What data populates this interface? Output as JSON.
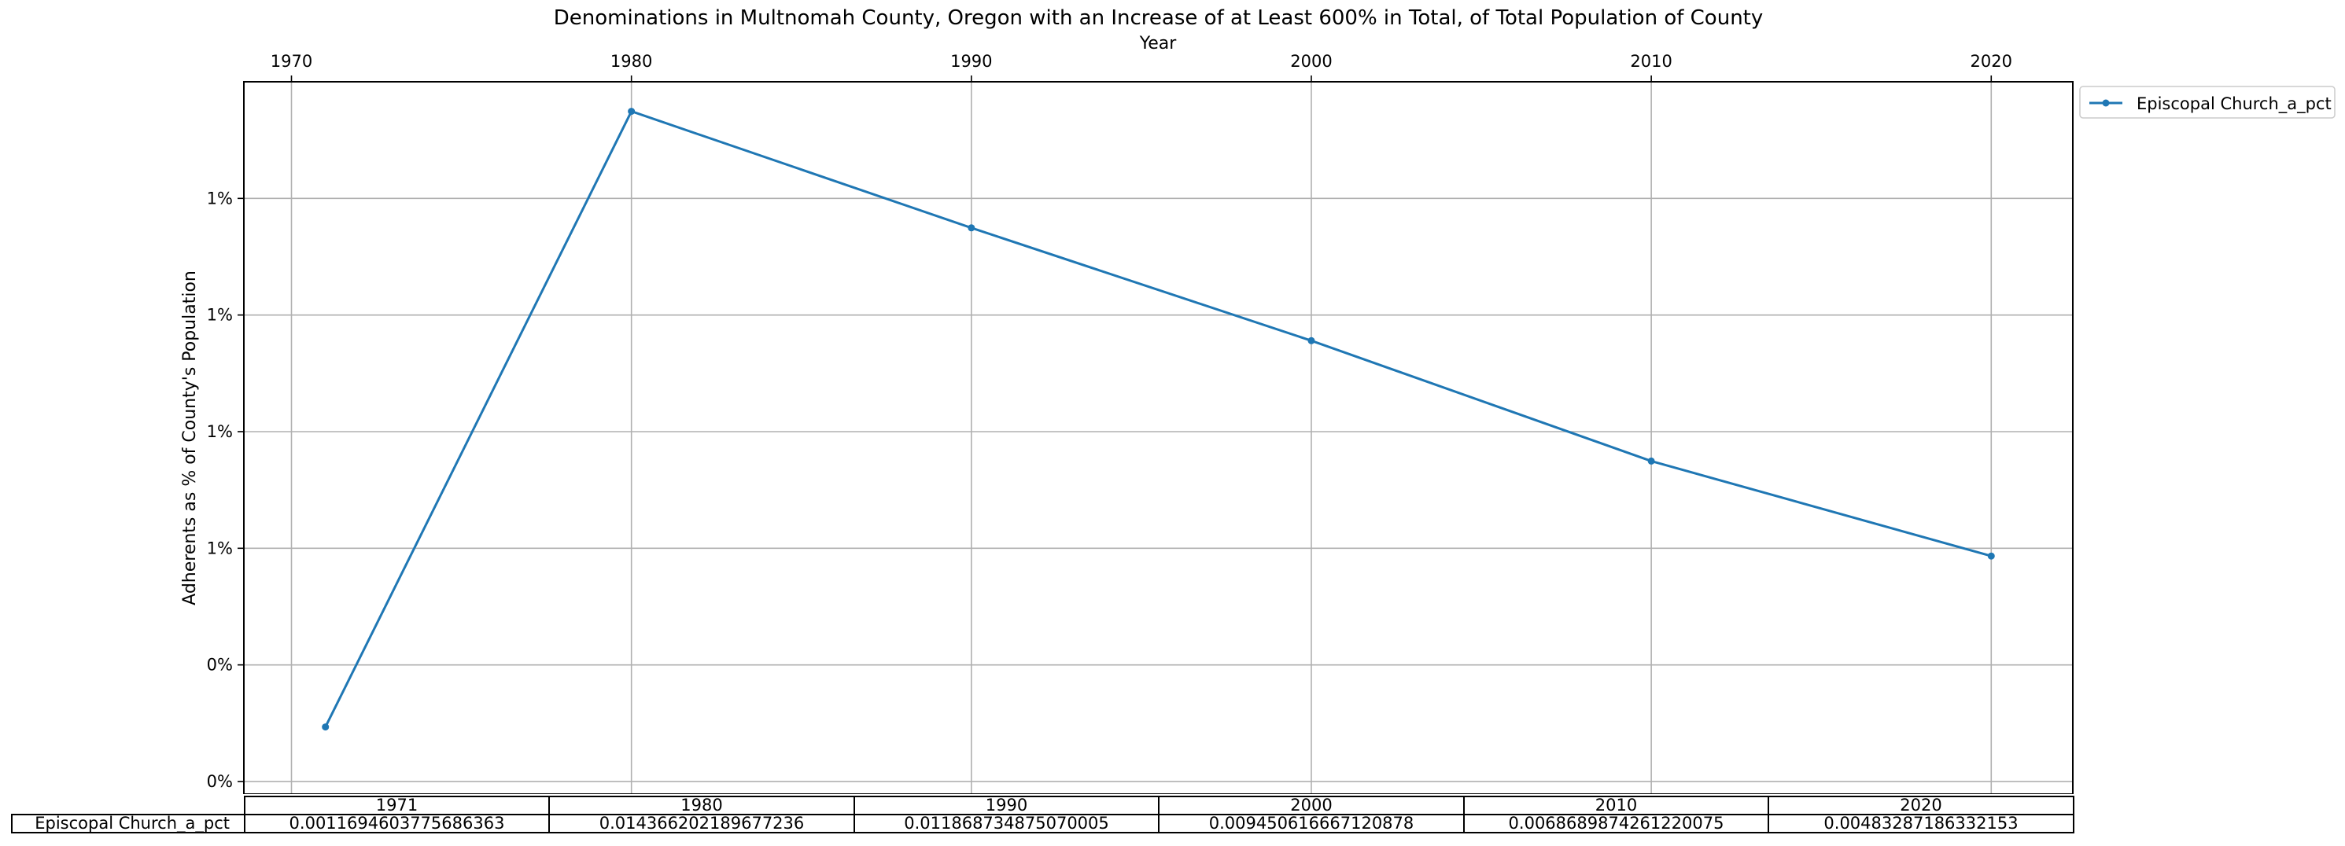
{
  "chart_data": {
    "type": "line",
    "title": "Denominations in Multnomah County, Oregon with an Increase of at Least 600% in Total, of Total Population of County",
    "xlabel": "Year",
    "ylabel": "Adherents as % of County's Population",
    "x_axis_position": "top",
    "xlim": [
      1968.6,
      2022.4
    ],
    "xticks": [
      1970,
      1980,
      1990,
      2000,
      2010,
      2020
    ],
    "ylim": [
      -0.00027,
      0.015
    ],
    "yticks": [
      0.0,
      0.0025,
      0.005,
      0.0075,
      0.01,
      0.0125
    ],
    "ytick_labels": [
      "0%",
      "0%",
      "1%",
      "1%",
      "1%",
      "1%"
    ],
    "grid": true,
    "legend_position": "outside-top-right",
    "x": [
      1971,
      1980,
      1990,
      2000,
      2010,
      2020
    ],
    "series": [
      {
        "name": "Episcopal Church_a_pct",
        "color": "#1f77b4",
        "marker": "dot",
        "values": [
          0.0011694603775686363,
          0.014366202189677236,
          0.011868734875070005,
          0.009450616667120878,
          0.0068689874261220075,
          0.00483287186332153
        ]
      }
    ],
    "table": {
      "columns": [
        "1971",
        "1980",
        "1990",
        "2000",
        "2010",
        "2020"
      ],
      "rows": [
        {
          "label": "Episcopal Church_a_pct",
          "cells": [
            "0.0011694603775686363",
            "0.014366202189677236",
            "0.011868734875070005",
            "0.009450616667120878",
            "0.0068689874261220075",
            "0.00483287186332153"
          ]
        }
      ]
    }
  }
}
